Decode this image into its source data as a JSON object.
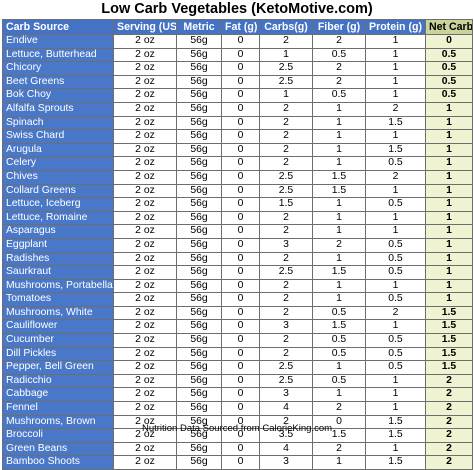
{
  "title": "Low Carb Vegetables (KetoMotive.com)",
  "footer": "Nutrition Data Sourced from CalorieKing.com",
  "table": {
    "headers": [
      "Carb Source",
      "Serving (US)",
      "Metric",
      "Fat (g)",
      "Carbs(g)",
      "Fiber (g)",
      "Protein (g)",
      "Net Carbs (g)"
    ],
    "rows": [
      [
        "Endive",
        "2 oz",
        "56g",
        "0",
        "2",
        "2",
        "1",
        "0"
      ],
      [
        "Lettuce, Butterhead",
        "2 oz",
        "56g",
        "0",
        "1",
        "0.5",
        "1",
        "0.5"
      ],
      [
        "Chicory",
        "2 oz",
        "56g",
        "0",
        "2.5",
        "2",
        "1",
        "0.5"
      ],
      [
        "Beet Greens",
        "2 oz",
        "56g",
        "0",
        "2.5",
        "2",
        "1",
        "0.5"
      ],
      [
        "Bok Choy",
        "2 oz",
        "56g",
        "0",
        "1",
        "0.5",
        "1",
        "0.5"
      ],
      [
        "Alfalfa Sprouts",
        "2 oz",
        "56g",
        "0",
        "2",
        "1",
        "2",
        "1"
      ],
      [
        "Spinach",
        "2 oz",
        "56g",
        "0",
        "2",
        "1",
        "1.5",
        "1"
      ],
      [
        "Swiss Chard",
        "2 oz",
        "56g",
        "0",
        "2",
        "1",
        "1",
        "1"
      ],
      [
        "Arugula",
        "2 oz",
        "56g",
        "0",
        "2",
        "1",
        "1.5",
        "1"
      ],
      [
        "Celery",
        "2 oz",
        "56g",
        "0",
        "2",
        "1",
        "0.5",
        "1"
      ],
      [
        "Chives",
        "2 oz",
        "56g",
        "0",
        "2.5",
        "1.5",
        "2",
        "1"
      ],
      [
        "Collard Greens",
        "2 oz",
        "56g",
        "0",
        "2.5",
        "1.5",
        "1",
        "1"
      ],
      [
        "Lettuce, Iceberg",
        "2 oz",
        "56g",
        "0",
        "1.5",
        "1",
        "0.5",
        "1"
      ],
      [
        "Lettuce, Romaine",
        "2 oz",
        "56g",
        "0",
        "2",
        "1",
        "1",
        "1"
      ],
      [
        "Asparagus",
        "2 oz",
        "56g",
        "0",
        "2",
        "1",
        "1",
        "1"
      ],
      [
        "Eggplant",
        "2 oz",
        "56g",
        "0",
        "3",
        "2",
        "0.5",
        "1"
      ],
      [
        "Radishes",
        "2 oz",
        "56g",
        "0",
        "2",
        "1",
        "0.5",
        "1"
      ],
      [
        "Saurkraut",
        "2 oz",
        "56g",
        "0",
        "2.5",
        "1.5",
        "0.5",
        "1"
      ],
      [
        "Mushrooms, Portabella",
        "2 oz",
        "56g",
        "0",
        "2",
        "1",
        "1",
        "1"
      ],
      [
        "Tomatoes",
        "2 oz",
        "56g",
        "0",
        "2",
        "1",
        "0.5",
        "1"
      ],
      [
        "Mushrooms, White",
        "2 oz",
        "56g",
        "0",
        "2",
        "0.5",
        "2",
        "1.5"
      ],
      [
        "Cauliflower",
        "2 oz",
        "56g",
        "0",
        "3",
        "1.5",
        "1",
        "1.5"
      ],
      [
        "Cucumber",
        "2 oz",
        "56g",
        "0",
        "2",
        "0.5",
        "0.5",
        "1.5"
      ],
      [
        "Dill Pickles",
        "2 oz",
        "56g",
        "0",
        "2",
        "0.5",
        "0.5",
        "1.5"
      ],
      [
        "Pepper, Bell Green",
        "2 oz",
        "56g",
        "0",
        "2.5",
        "1",
        "0.5",
        "1.5"
      ],
      [
        "Radicchio",
        "2 oz",
        "56g",
        "0",
        "2.5",
        "0.5",
        "1",
        "2"
      ],
      [
        "Cabbage",
        "2 oz",
        "56g",
        "0",
        "3",
        "1",
        "1",
        "2"
      ],
      [
        "Fennel",
        "2 oz",
        "56g",
        "0",
        "4",
        "2",
        "1",
        "2"
      ],
      [
        "Mushrooms, Brown",
        "2 oz",
        "56g",
        "0",
        "2",
        "0",
        "1.5",
        "2"
      ],
      [
        "Broccoli",
        "2 oz",
        "56g",
        "0",
        "3.5",
        "1.5",
        "1.5",
        "2"
      ],
      [
        "Green Beans",
        "2 oz",
        "56g",
        "0",
        "4",
        "2",
        "1",
        "2"
      ],
      [
        "Bamboo Shoots",
        "2 oz",
        "56g",
        "0",
        "3",
        "1",
        "1.5",
        "2"
      ]
    ]
  }
}
